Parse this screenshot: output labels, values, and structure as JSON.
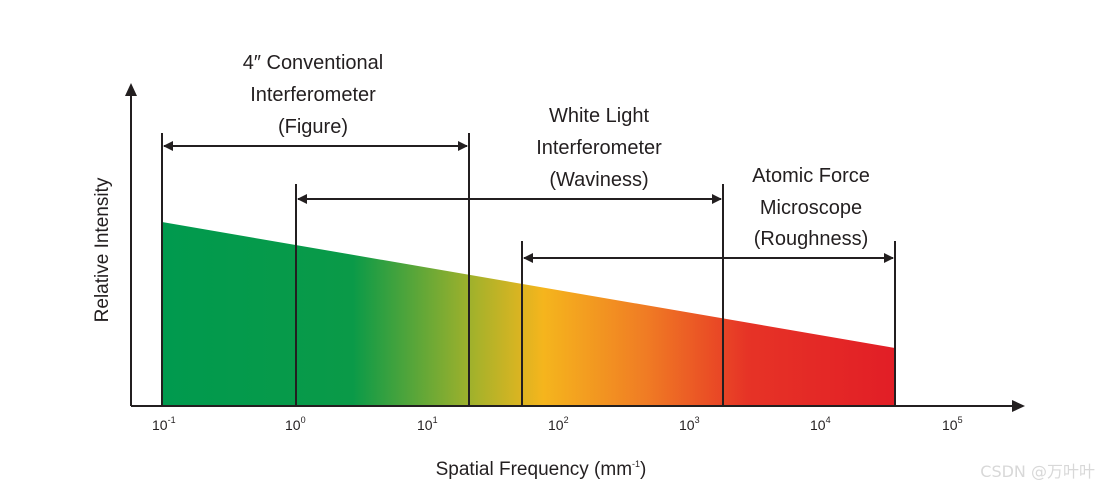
{
  "diagram": {
    "y_axis_title": "Relative Intensity",
    "x_axis_title": "Spatial Frequency (mm",
    "x_axis_title_exp": "-1",
    "x_axis_title_close": ")",
    "ticks": [
      {
        "base": "10",
        "exp": "-1"
      },
      {
        "base": "10",
        "exp": "0"
      },
      {
        "base": "10",
        "exp": "1"
      },
      {
        "base": "10",
        "exp": "2"
      },
      {
        "base": "10",
        "exp": "3"
      },
      {
        "base": "10",
        "exp": "4"
      },
      {
        "base": "10",
        "exp": "5"
      }
    ],
    "ranges": [
      {
        "lines": [
          "4″ Conventional",
          "Interferometer",
          "(Figure)"
        ]
      },
      {
        "lines": [
          "White Light",
          "Interferometer",
          "(Waviness)"
        ]
      },
      {
        "lines": [
          "Atomic Force",
          "Microscope",
          "(Roughness)"
        ]
      }
    ],
    "colors": {
      "green": "#009a4e",
      "yellow": "#f5b51d",
      "orange": "#f07c24",
      "red": "#e21e26",
      "ink": "#231f20"
    }
  },
  "watermark": "CSDN @万叶叶"
}
